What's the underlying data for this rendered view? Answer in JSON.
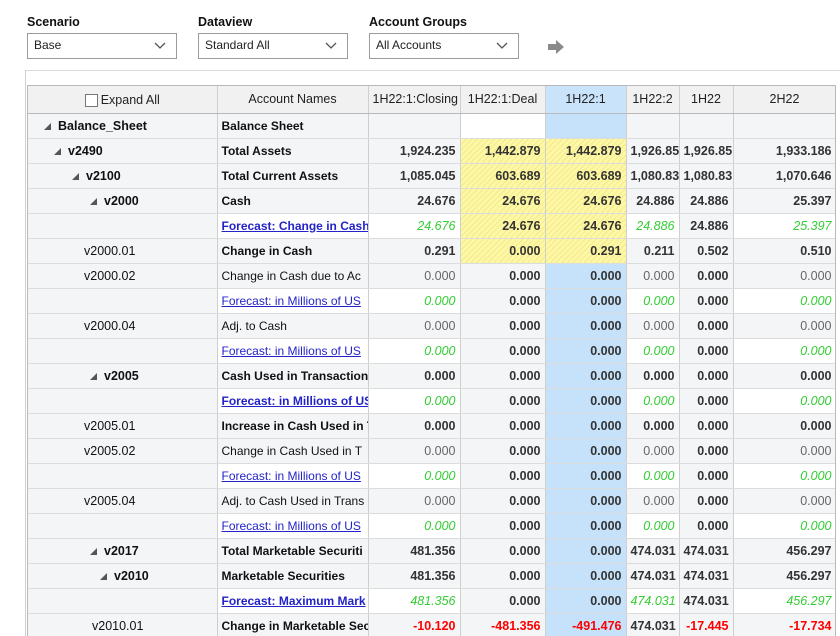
{
  "filters": {
    "scenario": {
      "label": "Scenario",
      "value": "Base"
    },
    "dataview": {
      "label": "Dataview",
      "value": "Standard All"
    },
    "account_groups": {
      "label": "Account Groups",
      "value": "All Accounts"
    }
  },
  "grid": {
    "expand_all": "Expand All",
    "account_names_header": "Account Names",
    "columns": [
      "1H22:1:Closing",
      "1H22:1:Deal",
      "1H22:1",
      "1H22:2",
      "1H22",
      "2H22"
    ],
    "rows": [
      {
        "tree": "Balance_Sheet",
        "level": 0,
        "expander": true,
        "tree_bold": true,
        "account": "Balance Sheet",
        "account_bold": true,
        "link": false,
        "forecast": false,
        "values": [
          "",
          "",
          "",
          "",
          "",
          ""
        ],
        "negatives": [
          false,
          false,
          false,
          false,
          false,
          false
        ]
      },
      {
        "tree": "v2490",
        "level": 1,
        "expander": true,
        "tree_bold": true,
        "account": "Total Assets",
        "account_bold": true,
        "link": false,
        "forecast": false,
        "values": [
          "1,924.235",
          "1,442.879",
          "1,442.879",
          "1,926.85",
          "1,926.85",
          "1,933.186"
        ],
        "negatives": [
          false,
          false,
          false,
          false,
          false,
          false
        ]
      },
      {
        "tree": "v2100",
        "level": 2,
        "expander": true,
        "tree_bold": true,
        "account": "Total Current Assets",
        "account_bold": true,
        "link": false,
        "forecast": false,
        "values": [
          "1,085.045",
          "603.689",
          "603.689",
          "1,080.83",
          "1,080.83",
          "1,070.646"
        ],
        "negatives": [
          false,
          false,
          false,
          false,
          false,
          false
        ]
      },
      {
        "tree": "v2000",
        "level": 3,
        "expander": true,
        "tree_bold": true,
        "account": "Cash",
        "account_bold": true,
        "link": false,
        "forecast": false,
        "values": [
          "24.676",
          "24.676",
          "24.676",
          "24.886",
          "24.886",
          "25.397"
        ],
        "negatives": [
          false,
          false,
          false,
          false,
          false,
          false
        ]
      },
      {
        "tree": "",
        "level": 3,
        "expander": false,
        "tree_bold": false,
        "account": "Forecast: Change in Cash",
        "account_bold": true,
        "link": true,
        "forecast": true,
        "values": [
          "24.676",
          "24.676",
          "24.676",
          "24.886",
          "24.886",
          "25.397"
        ],
        "negatives": [
          false,
          false,
          false,
          false,
          false,
          false
        ]
      },
      {
        "tree": "v2000.01",
        "level": 4,
        "expander": false,
        "tree_bold": false,
        "account": "Change in Cash",
        "account_bold": true,
        "link": false,
        "forecast": false,
        "values": [
          "0.291",
          "0.000",
          "0.291",
          "0.211",
          "0.502",
          "0.510"
        ],
        "negatives": [
          false,
          false,
          false,
          false,
          false,
          false
        ]
      },
      {
        "tree": "v2000.02",
        "level": 4,
        "expander": false,
        "tree_bold": false,
        "account": "Change in Cash due to Ac",
        "account_bold": false,
        "link": false,
        "forecast": false,
        "values": [
          "0.000",
          "0.000",
          "0.000",
          "0.000",
          "0.000",
          "0.000"
        ],
        "negatives": [
          false,
          false,
          false,
          false,
          false,
          false
        ]
      },
      {
        "tree": "",
        "level": 4,
        "expander": false,
        "tree_bold": false,
        "account": "Forecast: in Millions of US",
        "account_bold": false,
        "link": true,
        "forecast": true,
        "values": [
          "0.000",
          "0.000",
          "0.000",
          "0.000",
          "0.000",
          "0.000"
        ],
        "negatives": [
          false,
          false,
          false,
          false,
          false,
          false
        ]
      },
      {
        "tree": "v2000.04",
        "level": 4,
        "expander": false,
        "tree_bold": false,
        "account": "Adj. to Cash",
        "account_bold": false,
        "link": false,
        "forecast": false,
        "values": [
          "0.000",
          "0.000",
          "0.000",
          "0.000",
          "0.000",
          "0.000"
        ],
        "negatives": [
          false,
          false,
          false,
          false,
          false,
          false
        ]
      },
      {
        "tree": "",
        "level": 4,
        "expander": false,
        "tree_bold": false,
        "account": "Forecast: in Millions of US",
        "account_bold": false,
        "link": true,
        "forecast": true,
        "values": [
          "0.000",
          "0.000",
          "0.000",
          "0.000",
          "0.000",
          "0.000"
        ],
        "negatives": [
          false,
          false,
          false,
          false,
          false,
          false
        ]
      },
      {
        "tree": "v2005",
        "level": 3,
        "expander": true,
        "tree_bold": true,
        "account": "Cash Used in Transaction",
        "account_bold": true,
        "link": false,
        "forecast": false,
        "values": [
          "0.000",
          "0.000",
          "0.000",
          "0.000",
          "0.000",
          "0.000"
        ],
        "negatives": [
          false,
          false,
          false,
          false,
          false,
          false
        ]
      },
      {
        "tree": "",
        "level": 3,
        "expander": false,
        "tree_bold": false,
        "account": "Forecast: in Millions of US",
        "account_bold": true,
        "link": true,
        "forecast": true,
        "values": [
          "0.000",
          "0.000",
          "0.000",
          "0.000",
          "0.000",
          "0.000"
        ],
        "negatives": [
          false,
          false,
          false,
          false,
          false,
          false
        ]
      },
      {
        "tree": "v2005.01",
        "level": 4,
        "expander": false,
        "tree_bold": false,
        "account": "Increase in Cash Used in T",
        "account_bold": true,
        "link": false,
        "forecast": false,
        "values": [
          "0.000",
          "0.000",
          "0.000",
          "0.000",
          "0.000",
          "0.000"
        ],
        "negatives": [
          false,
          false,
          false,
          false,
          false,
          false
        ]
      },
      {
        "tree": "v2005.02",
        "level": 4,
        "expander": false,
        "tree_bold": false,
        "account": "Change in Cash Used in T",
        "account_bold": false,
        "link": false,
        "forecast": false,
        "values": [
          "0.000",
          "0.000",
          "0.000",
          "0.000",
          "0.000",
          "0.000"
        ],
        "negatives": [
          false,
          false,
          false,
          false,
          false,
          false
        ]
      },
      {
        "tree": "",
        "level": 4,
        "expander": false,
        "tree_bold": false,
        "account": "Forecast: in Millions of US",
        "account_bold": false,
        "link": true,
        "forecast": true,
        "values": [
          "0.000",
          "0.000",
          "0.000",
          "0.000",
          "0.000",
          "0.000"
        ],
        "negatives": [
          false,
          false,
          false,
          false,
          false,
          false
        ]
      },
      {
        "tree": "v2005.04",
        "level": 4,
        "expander": false,
        "tree_bold": false,
        "account": "Adj. to Cash Used in Trans",
        "account_bold": false,
        "link": false,
        "forecast": false,
        "values": [
          "0.000",
          "0.000",
          "0.000",
          "0.000",
          "0.000",
          "0.000"
        ],
        "negatives": [
          false,
          false,
          false,
          false,
          false,
          false
        ]
      },
      {
        "tree": "",
        "level": 4,
        "expander": false,
        "tree_bold": false,
        "account": "Forecast: in Millions of US",
        "account_bold": false,
        "link": true,
        "forecast": true,
        "values": [
          "0.000",
          "0.000",
          "0.000",
          "0.000",
          "0.000",
          "0.000"
        ],
        "negatives": [
          false,
          false,
          false,
          false,
          false,
          false
        ]
      },
      {
        "tree": "v2017",
        "level": 3,
        "expander": true,
        "tree_bold": true,
        "account": "Total Marketable Securiti",
        "account_bold": true,
        "link": false,
        "forecast": false,
        "values": [
          "481.356",
          "0.000",
          "0.000",
          "474.031",
          "474.031",
          "456.297"
        ],
        "negatives": [
          false,
          false,
          false,
          false,
          false,
          false
        ]
      },
      {
        "tree": "v2010",
        "level": 4,
        "expander": true,
        "tree_bold": true,
        "account": "Marketable Securities",
        "account_bold": true,
        "link": false,
        "forecast": false,
        "values": [
          "481.356",
          "0.000",
          "0.000",
          "474.031",
          "474.031",
          "456.297"
        ],
        "negatives": [
          false,
          false,
          false,
          false,
          false,
          false
        ]
      },
      {
        "tree": "",
        "level": 4,
        "expander": false,
        "tree_bold": false,
        "account": "Forecast: Maximum Mark",
        "account_bold": true,
        "link": true,
        "forecast": true,
        "values": [
          "481.356",
          "0.000",
          "0.000",
          "474.031",
          "474.031",
          "456.297"
        ],
        "negatives": [
          false,
          false,
          false,
          false,
          false,
          false
        ]
      },
      {
        "tree": "v2010.01",
        "level": 5,
        "expander": false,
        "tree_bold": false,
        "account": "Change in Marketable Sec",
        "account_bold": true,
        "link": false,
        "forecast": false,
        "values": [
          "-10.120",
          "-481.356",
          "-491.476",
          "474.031",
          "-17.445",
          "-17.734"
        ],
        "negatives": [
          true,
          true,
          true,
          false,
          true,
          true
        ]
      }
    ]
  },
  "colors": {
    "link": "#2323c8",
    "forecast_value": "#33cc33",
    "negative_value": "#ff0000",
    "deal_column_fill": "#fdf7a6",
    "selected_column_fill": "#c6e2fb"
  }
}
